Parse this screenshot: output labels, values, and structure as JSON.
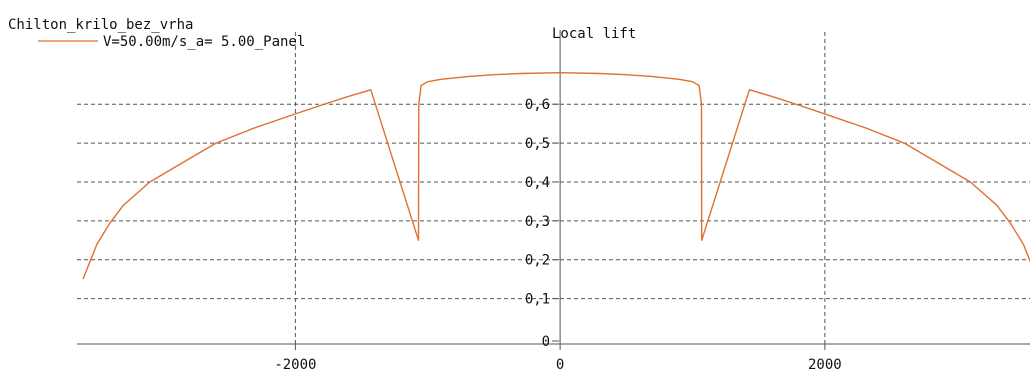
{
  "chart_data": {
    "type": "line",
    "legend_title": "Chilton_krilo_bez_vrha",
    "title": "Local lift",
    "legend_placement": "top-left",
    "grid": true,
    "xlim": [
      -3650,
      3550
    ],
    "ylim": [
      -0.04,
      0.76
    ],
    "x_ticks": [
      -2000,
      0,
      2000
    ],
    "x_tick_labels": [
      "-2000",
      "0",
      "2000"
    ],
    "y_ticks": [
      0,
      0.1,
      0.2,
      0.3,
      0.4,
      0.5,
      0.6
    ],
    "y_tick_labels": [
      "0",
      "0,1",
      "0,2",
      "0,3",
      "0,4",
      "0,5",
      "0,6"
    ],
    "series": [
      {
        "name": "V=50.00m/s_a= 5.00_Panel",
        "color": "#e07030",
        "x": [
          -3605,
          -3500,
          -3400,
          -3300,
          -3100,
          -2800,
          -2600,
          -2300,
          -2000,
          -1800,
          -1600,
          -1430,
          -1070,
          -1068,
          -1050,
          -1000,
          -900,
          -700,
          -500,
          -300,
          0,
          300,
          500,
          700,
          900,
          1000,
          1050,
          1068,
          1070,
          1430,
          1600,
          1800,
          2000,
          2300,
          2600,
          2800,
          3100,
          3300,
          3400,
          3500,
          3605
        ],
        "values": [
          0.15,
          0.24,
          0.295,
          0.34,
          0.4,
          0.46,
          0.5,
          0.54,
          0.575,
          0.598,
          0.62,
          0.637,
          0.25,
          0.6,
          0.648,
          0.658,
          0.664,
          0.671,
          0.676,
          0.679,
          0.681,
          0.679,
          0.676,
          0.671,
          0.664,
          0.658,
          0.648,
          0.6,
          0.25,
          0.637,
          0.62,
          0.598,
          0.575,
          0.54,
          0.5,
          0.46,
          0.4,
          0.34,
          0.295,
          0.24,
          0.15
        ]
      }
    ]
  }
}
